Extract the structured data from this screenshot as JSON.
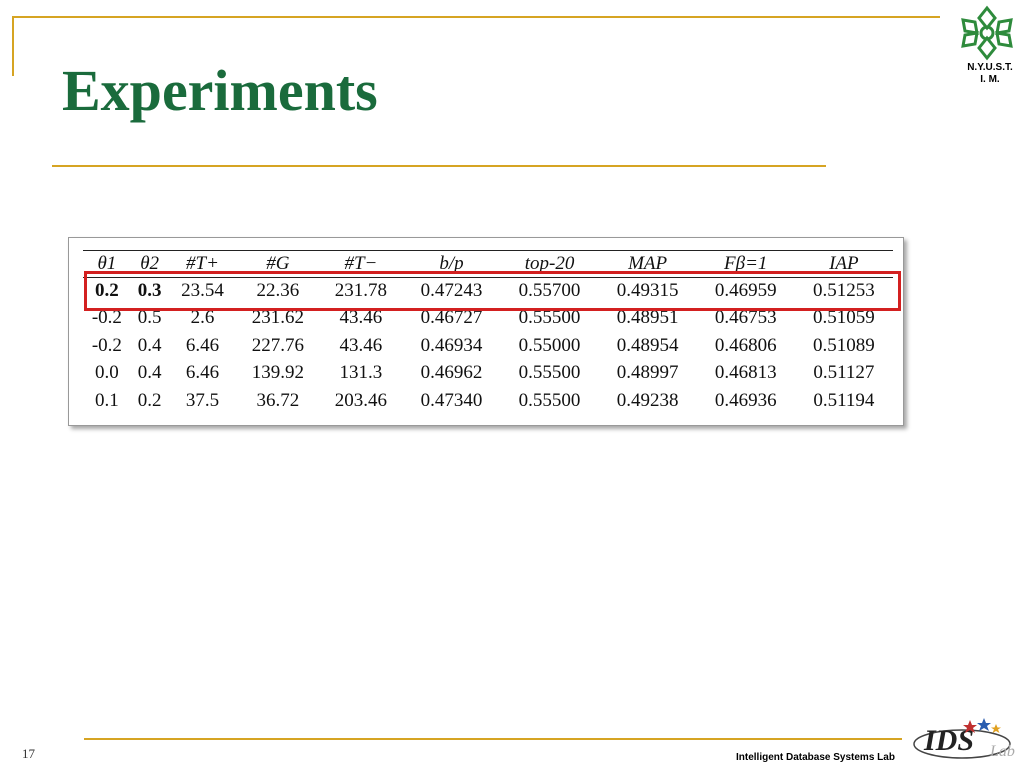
{
  "slide": {
    "title": "Experiments",
    "page_number": "17",
    "footer": "Intelligent Database Systems Lab"
  },
  "branding": {
    "top_logo_line1": "N.Y.U.S.T.",
    "top_logo_line2": "I. M.",
    "bottom_logo": "IDS",
    "bottom_logo_suffix": "Lab",
    "accent_color": "#d6a423",
    "title_color": "#1a6b3c",
    "highlight_color": "#d32020"
  },
  "table": {
    "headers": [
      "θ1",
      "θ2",
      "#T+",
      "#G",
      "#T−",
      "b/p",
      "top-20",
      "MAP",
      "Fβ=1",
      "IAP"
    ],
    "rows": [
      [
        "0.2",
        "0.3",
        "23.54",
        "22.36",
        "231.78",
        "0.47243",
        "0.55700",
        "0.49315",
        "0.46959",
        "0.51253"
      ],
      [
        "-0.2",
        "0.5",
        "2.6",
        "231.62",
        "43.46",
        "0.46727",
        "0.55500",
        "0.48951",
        "0.46753",
        "0.51059"
      ],
      [
        "-0.2",
        "0.4",
        "6.46",
        "227.76",
        "43.46",
        "0.46934",
        "0.55000",
        "0.48954",
        "0.46806",
        "0.51089"
      ],
      [
        "0.0",
        "0.4",
        "6.46",
        "139.92",
        "131.3",
        "0.46962",
        "0.55500",
        "0.48997",
        "0.46813",
        "0.51127"
      ],
      [
        "0.1",
        "0.2",
        "37.5",
        "36.72",
        "203.46",
        "0.47340",
        "0.55500",
        "0.49238",
        "0.46936",
        "0.51194"
      ]
    ]
  }
}
